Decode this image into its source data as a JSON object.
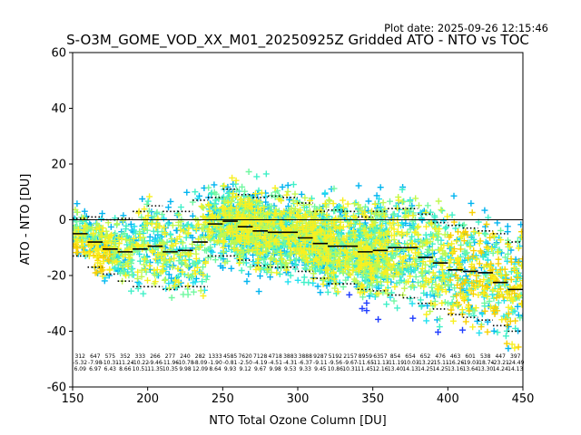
{
  "plot_date": "Plot date: 2025-09-26 12:15:46",
  "chart_data": {
    "type": "scatter",
    "title": "S-O3M_GOME_VOD_XX_M01_20250925Z Gridded ATO - NTO vs TOC",
    "xlabel": "NTO Total Ozone Column [DU]",
    "ylabel": "ATO - NTO [DU]",
    "xlim": [
      150,
      450
    ],
    "ylim": [
      -60,
      60
    ],
    "xticks": [
      150,
      200,
      250,
      300,
      350,
      400,
      450
    ],
    "yticks": [
      -60,
      -40,
      -20,
      0,
      20,
      40,
      60
    ],
    "grid": false,
    "marker": "plus",
    "colors": {
      "blue": "#1f3cff",
      "cyan": "#00b4f0",
      "cyan_light": "#22e0f0",
      "aqua": "#40f0c8",
      "green": "#70f8a0",
      "lime": "#c0f850",
      "yellow": "#f8f020",
      "gold": "#f8d000",
      "median_line": "#000000",
      "zero_line": "#000000"
    },
    "zero_line_y": 0,
    "bin_width": 10,
    "bins": [
      {
        "x": 155,
        "count": "312",
        "mean": "-5.32",
        "std": "6.09",
        "median": -5.0,
        "p10": -13.0,
        "p90": 0.5
      },
      {
        "x": 165,
        "count": "647",
        "mean": "-7.98",
        "std": "6.97",
        "median": -8.0,
        "p10": -17.0,
        "p90": 1.0
      },
      {
        "x": 175,
        "count": "575",
        "mean": "-10.31",
        "std": "6.43",
        "median": -10.5,
        "p10": -19.5,
        "p90": 0.0
      },
      {
        "x": 185,
        "count": "352",
        "mean": "-11.24",
        "std": "8.66",
        "median": -11.5,
        "p10": -22.0,
        "p90": 0.5
      },
      {
        "x": 195,
        "count": "333",
        "mean": "-10.22",
        "std": "10.51",
        "median": -10.5,
        "p10": -24.0,
        "p90": 3.0
      },
      {
        "x": 205,
        "count": "266",
        "mean": "-9.46",
        "std": "11.35",
        "median": -9.5,
        "p10": -24.0,
        "p90": 5.0
      },
      {
        "x": 215,
        "count": "277",
        "mean": "-11.96",
        "std": "10.35",
        "median": -11.5,
        "p10": -25.0,
        "p90": 3.0
      },
      {
        "x": 225,
        "count": "240",
        "mean": "-10.78",
        "std": "9.98",
        "median": -11.0,
        "p10": -24.0,
        "p90": 3.0
      },
      {
        "x": 235,
        "count": "282",
        "mean": "-8.09",
        "std": "12.09",
        "median": -8.0,
        "p10": -24.0,
        "p90": 7.0
      },
      {
        "x": 245,
        "count": "1333",
        "mean": "-1.90",
        "std": "8.64",
        "median": -1.5,
        "p10": -13.0,
        "p90": 8.0
      },
      {
        "x": 255,
        "count": "4585",
        "mean": "-0.81",
        "std": "9.93",
        "median": -0.5,
        "p10": -13.0,
        "p90": 11.0
      },
      {
        "x": 265,
        "count": "7620",
        "mean": "-2.50",
        "std": "9.12",
        "median": -2.5,
        "p10": -14.5,
        "p90": 9.0
      },
      {
        "x": 275,
        "count": "7128",
        "mean": "-4.19",
        "std": "9.67",
        "median": -4.0,
        "p10": -16.5,
        "p90": 8.0
      },
      {
        "x": 285,
        "count": "4718",
        "mean": "-4.51",
        "std": "9.98",
        "median": -4.5,
        "p10": -17.0,
        "p90": 8.5
      },
      {
        "x": 295,
        "count": "3883",
        "mean": "-4.31",
        "std": "9.53",
        "median": -4.5,
        "p10": -17.0,
        "p90": 8.0
      },
      {
        "x": 305,
        "count": "3888",
        "mean": "-6.37",
        "std": "9.33",
        "median": -6.5,
        "p10": -18.5,
        "p90": 6.0
      },
      {
        "x": 315,
        "count": "9287",
        "mean": "-9.11",
        "std": "9.45",
        "median": -8.5,
        "p10": -21.0,
        "p90": 3.0
      },
      {
        "x": 325,
        "count": "5192",
        "mean": "-9.56",
        "std": "10.86",
        "median": -9.5,
        "p10": -23.0,
        "p90": 3.5
      },
      {
        "x": 335,
        "count": "2157",
        "mean": "-9.67",
        "std": "10.31",
        "median": -9.5,
        "p10": -23.0,
        "p90": 3.0
      },
      {
        "x": 345,
        "count": "8959",
        "mean": "-11.65",
        "std": "11.45",
        "median": -11.5,
        "p10": -25.0,
        "p90": 1.0
      },
      {
        "x": 355,
        "count": "6357",
        "mean": "-11.13",
        "std": "12.16",
        "median": -11.0,
        "p10": -25.5,
        "p90": 3.0
      },
      {
        "x": 365,
        "count": "854",
        "mean": "-11.19",
        "std": "13.40",
        "median": -10.0,
        "p10": -27.0,
        "p90": 4.0
      },
      {
        "x": 375,
        "count": "654",
        "mean": "-10.03",
        "std": "14.13",
        "median": -10.0,
        "p10": -28.0,
        "p90": 4.0
      },
      {
        "x": 385,
        "count": "652",
        "mean": "-13.22",
        "std": "14.25",
        "median": -13.5,
        "p10": -30.0,
        "p90": 2.0
      },
      {
        "x": 395,
        "count": "476",
        "mean": "-15.11",
        "std": "14.25",
        "median": -15.5,
        "p10": -32.0,
        "p90": -1.0
      },
      {
        "x": 405,
        "count": "463",
        "mean": "-16.26",
        "std": "13.16",
        "median": -18.0,
        "p10": -34.0,
        "p90": -2.0
      },
      {
        "x": 415,
        "count": "601",
        "mean": "-19.03",
        "std": "13.64",
        "median": -18.5,
        "p10": -35.0,
        "p90": -3.0
      },
      {
        "x": 425,
        "count": "538",
        "mean": "-18.74",
        "std": "13.30",
        "median": -19.0,
        "p10": -36.0,
        "p90": -4.0
      },
      {
        "x": 435,
        "count": "447",
        "mean": "-23.21",
        "std": "14.24",
        "median": -22.5,
        "p10": -38.0,
        "p90": -5.0
      },
      {
        "x": 445,
        "count": "397",
        "mean": "-24.49",
        "std": "14.13",
        "median": -25.0,
        "p10": -40.0,
        "p90": -8.0
      }
    ]
  }
}
